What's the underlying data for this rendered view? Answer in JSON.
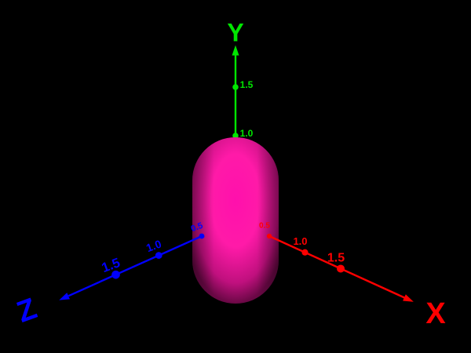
{
  "scene": {
    "background": "#000000",
    "object": {
      "shape": "capsule",
      "color": "#ff1aa8"
    },
    "axes": {
      "x": {
        "label": "X",
        "color": "#ff0000",
        "ticks": [
          {
            "value": 0.5,
            "label": "0.5"
          },
          {
            "value": 1.0,
            "label": "1.0"
          },
          {
            "value": 1.5,
            "label": "1.5"
          }
        ]
      },
      "y": {
        "label": "Y",
        "color": "#00e600",
        "ticks": [
          {
            "value": 1.0,
            "label": "1.0"
          },
          {
            "value": 1.5,
            "label": "1.5"
          }
        ]
      },
      "z": {
        "label": "Z",
        "color": "#0000ff",
        "ticks": [
          {
            "value": 0.5,
            "label": "0.5"
          },
          {
            "value": 1.0,
            "label": "1.0"
          },
          {
            "value": 1.5,
            "label": "1.5"
          }
        ]
      }
    }
  }
}
